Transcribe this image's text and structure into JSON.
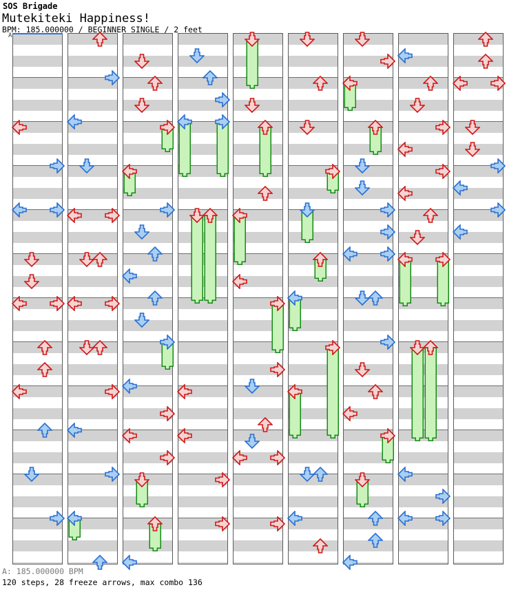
{
  "header": {
    "group": "SOS Brigade",
    "title": "Mutekiteki Happiness!",
    "meta": "BPM: 185.000000 / BEGINNER SINGLE / 2 feet"
  },
  "marker": {
    "label": "A"
  },
  "footer": {
    "bpm_line": "A: 185.000000 BPM",
    "stats_line": "120 steps, 28 freeze arrows, max combo 136"
  },
  "colors": {
    "stripe": "#d2d2d2",
    "measure_line": "#6e6e6e",
    "column_border": "#5a5a5a",
    "bpm_marker_blue": "#2e74d8",
    "red_arrow_border": "#d01818",
    "red_arrow_fill": "#f5d3d3",
    "blue_arrow_border": "#2b6fd0",
    "blue_arrow_fill": "#a9cff2",
    "freeze_border": "#158a15",
    "freeze_fill": "#c9f3bb"
  },
  "chart": {
    "note": "r = vertical row in 8th-note units (8px each) from column top; lane L/D/U/R; c = red 4th / blue 8th; fe = freeze tail end row",
    "columns": [
      {
        "arrows": [
          {
            "r": 17,
            "l": "L",
            "c": "red"
          },
          {
            "r": 24,
            "l": "R",
            "c": "blue"
          },
          {
            "r": 32,
            "l": "L",
            "c": "blue"
          },
          {
            "r": 32,
            "l": "R",
            "c": "blue"
          },
          {
            "r": 41,
            "l": "D",
            "c": "red"
          },
          {
            "r": 45,
            "l": "D",
            "c": "red"
          },
          {
            "r": 49,
            "l": "L",
            "c": "red"
          },
          {
            "r": 49,
            "l": "R",
            "c": "red"
          },
          {
            "r": 57,
            "l": "U",
            "c": "red"
          },
          {
            "r": 61,
            "l": "U",
            "c": "red"
          },
          {
            "r": 65,
            "l": "L",
            "c": "red"
          },
          {
            "r": 72,
            "l": "U",
            "c": "blue"
          },
          {
            "r": 80,
            "l": "D",
            "c": "blue"
          },
          {
            "r": 88,
            "l": "R",
            "c": "blue"
          }
        ]
      },
      {
        "arrows": [
          {
            "r": 1,
            "l": "U",
            "c": "red"
          },
          {
            "r": 8,
            "l": "R",
            "c": "blue"
          },
          {
            "r": 16,
            "l": "L",
            "c": "blue"
          },
          {
            "r": 24,
            "l": "D",
            "c": "blue"
          },
          {
            "r": 33,
            "l": "L",
            "c": "red"
          },
          {
            "r": 33,
            "l": "R",
            "c": "red"
          },
          {
            "r": 41,
            "l": "D",
            "c": "red"
          },
          {
            "r": 41,
            "l": "U",
            "c": "red"
          },
          {
            "r": 49,
            "l": "L",
            "c": "red"
          },
          {
            "r": 49,
            "l": "R",
            "c": "red"
          },
          {
            "r": 57,
            "l": "D",
            "c": "red"
          },
          {
            "r": 57,
            "l": "U",
            "c": "red"
          },
          {
            "r": 65,
            "l": "R",
            "c": "red"
          },
          {
            "r": 72,
            "l": "L",
            "c": "blue"
          },
          {
            "r": 80,
            "l": "R",
            "c": "blue"
          },
          {
            "r": 88,
            "l": "L",
            "c": "blue",
            "fe": 92
          },
          {
            "r": 96,
            "l": "U",
            "c": "blue"
          }
        ]
      },
      {
        "arrows": [
          {
            "r": 5,
            "l": "D",
            "c": "red"
          },
          {
            "r": 9,
            "l": "U",
            "c": "red"
          },
          {
            "r": 13,
            "l": "D",
            "c": "red"
          },
          {
            "r": 17,
            "l": "R",
            "c": "red",
            "fe": 21.5
          },
          {
            "r": 25,
            "l": "L",
            "c": "red",
            "fe": 29.5
          },
          {
            "r": 32,
            "l": "R",
            "c": "blue"
          },
          {
            "r": 36,
            "l": "D",
            "c": "blue"
          },
          {
            "r": 40,
            "l": "U",
            "c": "blue"
          },
          {
            "r": 44,
            "l": "L",
            "c": "blue"
          },
          {
            "r": 48,
            "l": "U",
            "c": "blue"
          },
          {
            "r": 52,
            "l": "D",
            "c": "blue"
          },
          {
            "r": 56,
            "l": "R",
            "c": "blue",
            "fe": 61
          },
          {
            "r": 64,
            "l": "L",
            "c": "blue"
          },
          {
            "r": 69,
            "l": "R",
            "c": "red"
          },
          {
            "r": 73,
            "l": "L",
            "c": "red"
          },
          {
            "r": 77,
            "l": "R",
            "c": "red"
          },
          {
            "r": 81,
            "l": "D",
            "c": "red",
            "fe": 86
          },
          {
            "r": 89,
            "l": "U",
            "c": "red",
            "fe": 94
          },
          {
            "r": 96,
            "l": "L",
            "c": "blue"
          }
        ]
      },
      {
        "arrows": [
          {
            "r": 4,
            "l": "D",
            "c": "blue"
          },
          {
            "r": 8,
            "l": "U",
            "c": "blue"
          },
          {
            "r": 12,
            "l": "R",
            "c": "blue"
          },
          {
            "r": 16,
            "l": "L",
            "c": "blue",
            "fe": 26
          },
          {
            "r": 16,
            "l": "R",
            "c": "blue",
            "fe": 26
          },
          {
            "r": 33,
            "l": "D",
            "c": "red",
            "fe": 49
          },
          {
            "r": 33,
            "l": "U",
            "c": "red",
            "fe": 49
          },
          {
            "r": 65,
            "l": "L",
            "c": "red"
          },
          {
            "r": 73,
            "l": "L",
            "c": "red"
          },
          {
            "r": 81,
            "l": "R",
            "c": "red"
          },
          {
            "r": 89,
            "l": "R",
            "c": "red"
          }
        ]
      },
      {
        "arrows": [
          {
            "r": 1,
            "l": "D",
            "c": "red",
            "fe": 10
          },
          {
            "r": 13,
            "l": "D",
            "c": "red"
          },
          {
            "r": 17,
            "l": "U",
            "c": "red",
            "fe": 26
          },
          {
            "r": 29,
            "l": "U",
            "c": "red"
          },
          {
            "r": 33,
            "l": "L",
            "c": "red",
            "fe": 42
          },
          {
            "r": 45,
            "l": "L",
            "c": "red"
          },
          {
            "r": 49,
            "l": "R",
            "c": "red",
            "fe": 58
          },
          {
            "r": 61,
            "l": "R",
            "c": "red"
          },
          {
            "r": 64,
            "l": "D",
            "c": "blue"
          },
          {
            "r": 71,
            "l": "U",
            "c": "red"
          },
          {
            "r": 74,
            "l": "D",
            "c": "blue"
          },
          {
            "r": 77,
            "l": "L",
            "c": "red"
          },
          {
            "r": 77,
            "l": "R",
            "c": "red"
          },
          {
            "r": 89,
            "l": "R",
            "c": "red"
          }
        ]
      },
      {
        "arrows": [
          {
            "r": 1,
            "l": "D",
            "c": "red"
          },
          {
            "r": 9,
            "l": "U",
            "c": "red"
          },
          {
            "r": 17,
            "l": "D",
            "c": "red"
          },
          {
            "r": 25,
            "l": "R",
            "c": "red",
            "fe": 29
          },
          {
            "r": 32,
            "l": "D",
            "c": "blue",
            "fe": 38
          },
          {
            "r": 41,
            "l": "U",
            "c": "red",
            "fe": 45
          },
          {
            "r": 48,
            "l": "L",
            "c": "blue",
            "fe": 54
          },
          {
            "r": 57,
            "l": "R",
            "c": "red",
            "fe": 73.5
          },
          {
            "r": 65,
            "l": "L",
            "c": "red",
            "fe": 73.5
          },
          {
            "r": 80,
            "l": "D",
            "c": "blue"
          },
          {
            "r": 80,
            "l": "U",
            "c": "blue"
          },
          {
            "r": 88,
            "l": "L",
            "c": "blue"
          },
          {
            "r": 93,
            "l": "U",
            "c": "red"
          }
        ]
      },
      {
        "arrows": [
          {
            "r": 1,
            "l": "D",
            "c": "red"
          },
          {
            "r": 5,
            "l": "R",
            "c": "red"
          },
          {
            "r": 9,
            "l": "L",
            "c": "red",
            "fe": 14
          },
          {
            "r": 17,
            "l": "U",
            "c": "red",
            "fe": 22
          },
          {
            "r": 24,
            "l": "D",
            "c": "blue"
          },
          {
            "r": 28,
            "l": "D",
            "c": "blue"
          },
          {
            "r": 32,
            "l": "R",
            "c": "blue"
          },
          {
            "r": 36,
            "l": "R",
            "c": "blue"
          },
          {
            "r": 40,
            "l": "L",
            "c": "blue"
          },
          {
            "r": 40,
            "l": "R",
            "c": "blue"
          },
          {
            "r": 48,
            "l": "D",
            "c": "blue"
          },
          {
            "r": 48,
            "l": "U",
            "c": "blue"
          },
          {
            "r": 56,
            "l": "R",
            "c": "blue"
          },
          {
            "r": 61,
            "l": "D",
            "c": "red"
          },
          {
            "r": 65,
            "l": "U",
            "c": "red"
          },
          {
            "r": 69,
            "l": "L",
            "c": "red"
          },
          {
            "r": 73,
            "l": "R",
            "c": "red",
            "fe": 78
          },
          {
            "r": 81,
            "l": "D",
            "c": "red",
            "fe": 86
          },
          {
            "r": 88,
            "l": "U",
            "c": "blue"
          },
          {
            "r": 92,
            "l": "U",
            "c": "blue"
          },
          {
            "r": 96,
            "l": "L",
            "c": "blue"
          }
        ]
      },
      {
        "arrows": [
          {
            "r": 4,
            "l": "L",
            "c": "blue"
          },
          {
            "r": 9,
            "l": "U",
            "c": "red"
          },
          {
            "r": 13,
            "l": "D",
            "c": "red"
          },
          {
            "r": 17,
            "l": "R",
            "c": "red"
          },
          {
            "r": 21,
            "l": "L",
            "c": "red"
          },
          {
            "r": 25,
            "l": "R",
            "c": "red"
          },
          {
            "r": 29,
            "l": "L",
            "c": "red"
          },
          {
            "r": 33,
            "l": "U",
            "c": "red"
          },
          {
            "r": 37,
            "l": "D",
            "c": "red"
          },
          {
            "r": 41,
            "l": "L",
            "c": "red",
            "fe": 49.5
          },
          {
            "r": 41,
            "l": "R",
            "c": "red",
            "fe": 49.5
          },
          {
            "r": 57,
            "l": "D",
            "c": "red",
            "fe": 74
          },
          {
            "r": 57,
            "l": "U",
            "c": "red",
            "fe": 74
          },
          {
            "r": 80,
            "l": "L",
            "c": "blue"
          },
          {
            "r": 84,
            "l": "R",
            "c": "blue"
          },
          {
            "r": 88,
            "l": "L",
            "c": "blue"
          },
          {
            "r": 88,
            "l": "R",
            "c": "blue"
          }
        ]
      },
      {
        "arrows": [
          {
            "r": 1,
            "l": "U",
            "c": "red"
          },
          {
            "r": 5,
            "l": "U",
            "c": "red"
          },
          {
            "r": 9,
            "l": "L",
            "c": "red"
          },
          {
            "r": 9,
            "l": "R",
            "c": "red"
          },
          {
            "r": 17,
            "l": "D",
            "c": "red"
          },
          {
            "r": 21,
            "l": "D",
            "c": "red"
          },
          {
            "r": 24,
            "l": "R",
            "c": "blue"
          },
          {
            "r": 28,
            "l": "L",
            "c": "blue"
          },
          {
            "r": 32,
            "l": "R",
            "c": "blue"
          },
          {
            "r": 36,
            "l": "L",
            "c": "blue"
          }
        ]
      }
    ]
  }
}
